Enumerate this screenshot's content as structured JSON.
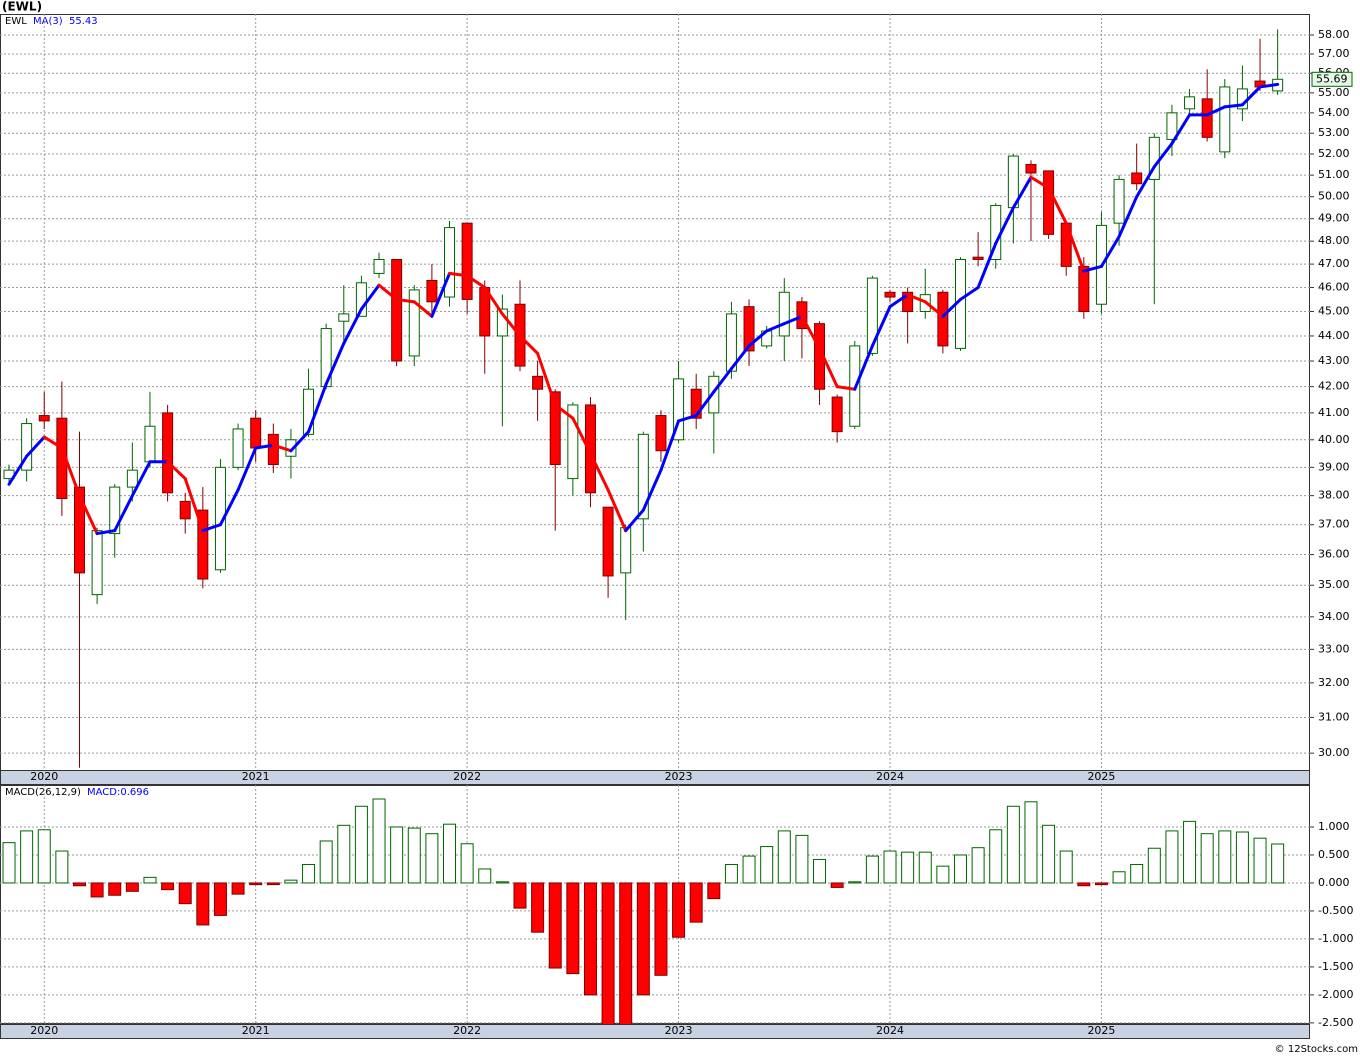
{
  "chart_data": [
    {
      "type": "candlestick",
      "title": "(EWL)",
      "log_scale": true,
      "grid": true,
      "categories": [
        null,
        null,
        "2020",
        null,
        null,
        null,
        null,
        null,
        null,
        null,
        null,
        null,
        null,
        null,
        "2021",
        null,
        null,
        null,
        null,
        null,
        null,
        null,
        null,
        null,
        null,
        null,
        "2022",
        null,
        null,
        null,
        null,
        null,
        null,
        null,
        null,
        null,
        null,
        null,
        "2023",
        null,
        null,
        null,
        null,
        null,
        null,
        null,
        null,
        null,
        null,
        null,
        "2024",
        null,
        null,
        null,
        null,
        null,
        null,
        null,
        null,
        null,
        null,
        null,
        "2025",
        null,
        null,
        null,
        null,
        null,
        null,
        null,
        null,
        null,
        null
      ],
      "series": [
        {
          "name": "EWL",
          "up_color": "#006600",
          "down_color": "#ff0000",
          "open": [
            38.6,
            38.9,
            40.9,
            40.8,
            38.3,
            34.7,
            36.7,
            38.3,
            39.2,
            41.0,
            37.8,
            37.5,
            35.5,
            39.0,
            40.8,
            40.2,
            39.4,
            40.2,
            42.0,
            44.6,
            44.8,
            46.6,
            47.2,
            43.2,
            46.3,
            45.6,
            48.8,
            46.0,
            44.0,
            45.3,
            42.4,
            41.8,
            38.6,
            41.3,
            37.6,
            35.4,
            37.2,
            40.9,
            40.0,
            41.9,
            41.0,
            42.6,
            45.2,
            43.6,
            44.0,
            45.4,
            44.5,
            41.6,
            40.5,
            43.3,
            45.8,
            45.8,
            45.0,
            45.8,
            43.5,
            47.3,
            47.2,
            49.5,
            51.5,
            51.2,
            48.8,
            46.9,
            45.3,
            48.8,
            51.1,
            50.8,
            52.7,
            54.2,
            54.7,
            52.1,
            54.2,
            55.6,
            55.1
          ],
          "high": [
            39.1,
            40.8,
            41.8,
            42.2,
            40.3,
            36.9,
            38.4,
            39.9,
            41.8,
            41.3,
            38.1,
            38.3,
            39.3,
            40.6,
            41.1,
            40.6,
            40.4,
            42.7,
            44.5,
            46.1,
            46.5,
            47.5,
            47.2,
            46.1,
            47.0,
            48.9,
            48.8,
            46.3,
            45.7,
            46.3,
            43.0,
            41.9,
            41.4,
            41.6,
            37.6,
            37.0,
            40.3,
            41.1,
            43.0,
            42.5,
            42.6,
            45.4,
            45.5,
            44.4,
            46.4,
            45.6,
            44.6,
            41.7,
            43.8,
            46.5,
            45.9,
            46.0,
            46.8,
            45.9,
            47.3,
            48.4,
            49.7,
            52.0,
            51.7,
            51.2,
            48.9,
            47.3,
            49.3,
            51.0,
            52.5,
            53.0,
            54.4,
            55.2,
            56.2,
            55.7,
            56.4,
            57.8,
            58.3
          ],
          "low": [
            38.4,
            38.5,
            40.4,
            37.3,
            29.6,
            34.4,
            35.9,
            37.8,
            39.0,
            37.8,
            36.7,
            34.9,
            35.4,
            38.9,
            39.2,
            38.8,
            38.6,
            40.1,
            41.9,
            43.8,
            44.8,
            46.4,
            42.8,
            42.8,
            44.8,
            45.2,
            44.9,
            42.5,
            40.5,
            42.6,
            40.7,
            36.8,
            38.0,
            37.6,
            34.6,
            33.9,
            36.1,
            39.2,
            39.9,
            40.4,
            39.5,
            42.3,
            42.8,
            43.5,
            43.0,
            43.1,
            41.3,
            39.9,
            40.4,
            43.2,
            45.4,
            43.7,
            44.7,
            43.3,
            43.4,
            46.9,
            46.8,
            47.9,
            48.0,
            48.1,
            46.5,
            44.7,
            44.9,
            47.8,
            50.3,
            45.3,
            51.9,
            53.9,
            52.6,
            51.8,
            53.6,
            55.1,
            54.9
          ],
          "close": [
            38.9,
            40.6,
            40.7,
            37.9,
            35.4,
            36.8,
            38.3,
            38.9,
            40.5,
            38.1,
            37.2,
            35.2,
            39.0,
            40.4,
            39.7,
            39.1,
            40.0,
            41.9,
            44.3,
            44.9,
            46.2,
            47.2,
            43.0,
            45.9,
            45.4,
            48.6,
            45.5,
            44.0,
            45.1,
            42.8,
            41.9,
            39.1,
            41.3,
            38.1,
            35.3,
            36.9,
            40.2,
            39.6,
            42.3,
            40.8,
            42.4,
            44.9,
            43.4,
            44.2,
            45.8,
            44.3,
            41.9,
            40.3,
            43.6,
            46.4,
            45.6,
            45.0,
            45.7,
            43.6,
            47.2,
            47.2,
            49.6,
            51.9,
            51.1,
            48.3,
            46.9,
            45.0,
            48.7,
            50.8,
            50.6,
            52.8,
            54.0,
            54.8,
            52.8,
            55.3,
            55.2,
            55.3,
            55.69
          ]
        },
        {
          "name": "MA(3)",
          "color": "#0000ff",
          "up_color": "#0000ff",
          "down_color": "#ff0000",
          "values": [
            38.4,
            39.4,
            40.1,
            39.7,
            38.0,
            36.7,
            36.8,
            38.0,
            39.2,
            39.2,
            38.6,
            36.8,
            37.0,
            38.2,
            39.7,
            39.8,
            39.6,
            40.3,
            42.1,
            43.7,
            45.1,
            46.1,
            45.5,
            45.4,
            44.8,
            46.6,
            46.5,
            46.0,
            44.9,
            44.0,
            43.3,
            41.3,
            40.8,
            39.5,
            38.2,
            36.8,
            37.5,
            38.9,
            40.7,
            40.9,
            41.8,
            42.7,
            43.6,
            44.2,
            44.5,
            44.8,
            43.5,
            42.0,
            41.9,
            43.6,
            45.2,
            45.7,
            45.4,
            44.8,
            45.5,
            46.0,
            47.9,
            49.5,
            50.9,
            50.4,
            48.8,
            46.7,
            46.9,
            48.2,
            50.0,
            51.4,
            52.5,
            53.9,
            53.9,
            54.3,
            54.4,
            55.3,
            55.43
          ]
        }
      ],
      "ylim": [
        29.54,
        59.13
      ],
      "yticks": [
        {
          "value": 30,
          "label": "30.00"
        },
        {
          "value": 31,
          "label": "31.00"
        },
        {
          "value": 32,
          "label": "32.00"
        },
        {
          "value": 33,
          "label": "33.00"
        },
        {
          "value": 34,
          "label": "34.00"
        },
        {
          "value": 35,
          "label": "35.00"
        },
        {
          "value": 36,
          "label": "36.00"
        },
        {
          "value": 37,
          "label": "37.00"
        },
        {
          "value": 38,
          "label": "38.00"
        },
        {
          "value": 39,
          "label": "39.00"
        },
        {
          "value": 40,
          "label": "40.00"
        },
        {
          "value": 41,
          "label": "41.00"
        },
        {
          "value": 42,
          "label": "42.00"
        },
        {
          "value": 43,
          "label": "43.00"
        },
        {
          "value": 44,
          "label": "44.00"
        },
        {
          "value": 45,
          "label": "45.00"
        },
        {
          "value": 46,
          "label": "46.00"
        },
        {
          "value": 47,
          "label": "47.00"
        },
        {
          "value": 48,
          "label": "48.00"
        },
        {
          "value": 49,
          "label": "49.00"
        },
        {
          "value": 50,
          "label": "50.00"
        },
        {
          "value": 51,
          "label": "51.00"
        },
        {
          "value": 52,
          "label": "52.00"
        },
        {
          "value": 53,
          "label": "53.00"
        },
        {
          "value": 54,
          "label": "54.00"
        },
        {
          "value": 55,
          "label": "55.00"
        },
        {
          "value": 56,
          "label": "56.00"
        },
        {
          "value": 57,
          "label": "57.00"
        },
        {
          "value": 58,
          "label": "58.00"
        }
      ]
    },
    {
      "type": "bar",
      "title": "MACD(26,12,9)",
      "subtitle": "MACD:0.696",
      "grid": true,
      "series": [
        {
          "name": "MACD",
          "up_color": "#006600",
          "down_color": "#ff0000",
          "values": [
            0.72,
            0.93,
            0.95,
            0.57,
            -0.05,
            -0.25,
            -0.22,
            -0.15,
            0.1,
            -0.12,
            -0.37,
            -0.75,
            -0.58,
            -0.2,
            -0.03,
            -0.03,
            0.05,
            0.33,
            0.75,
            1.03,
            1.37,
            1.5,
            1.0,
            0.98,
            0.88,
            1.05,
            0.7,
            0.25,
            0.02,
            -0.45,
            -0.88,
            -1.52,
            -1.62,
            -2.0,
            -2.55,
            -2.55,
            -2.0,
            -1.65,
            -0.97,
            -0.7,
            -0.28,
            0.33,
            0.48,
            0.65,
            0.93,
            0.85,
            0.42,
            -0.08,
            0.02,
            0.48,
            0.57,
            0.55,
            0.55,
            0.3,
            0.5,
            0.63,
            0.95,
            1.37,
            1.45,
            1.03,
            0.57,
            -0.05,
            -0.03,
            0.2,
            0.33,
            0.62,
            0.93,
            1.1,
            0.88,
            0.93,
            0.91,
            0.8,
            0.696
          ]
        }
      ],
      "ylim": [
        -2.52,
        1.75
      ],
      "yticks": [
        {
          "value": 1,
          "label": "1.000"
        },
        {
          "value": 0.5,
          "label": "0.500"
        },
        {
          "value": 0,
          "label": "0.000"
        },
        {
          "value": -0.5,
          "label": "-0.500"
        },
        {
          "value": -1,
          "label": "-1.000"
        },
        {
          "value": -1.5,
          "label": "-1.500"
        },
        {
          "value": -2,
          "label": "-2.000"
        },
        {
          "value": -2.5,
          "label": "-2.500"
        }
      ]
    }
  ],
  "credit": "© 12Stocks.com"
}
